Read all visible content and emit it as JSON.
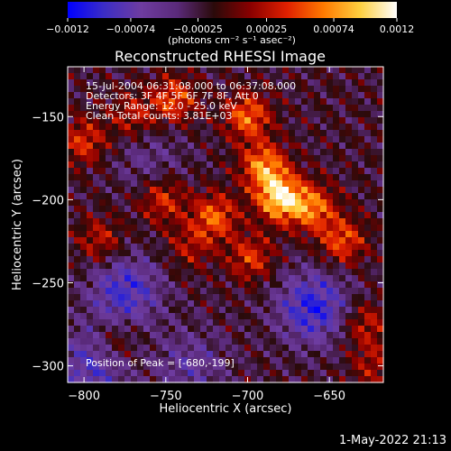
{
  "chart_data": {
    "type": "heatmap",
    "title": "Reconstructed RHESSI Image",
    "xlabel": "Heliocentric X (arcsec)",
    "ylabel": "Heliocentric Y (arcsec)",
    "xlim": [
      -810,
      -617
    ],
    "ylim": [
      -310,
      -120
    ],
    "x_ticks": [
      -800,
      -750,
      -700,
      -650
    ],
    "y_ticks": [
      -150,
      -200,
      -250,
      -300
    ],
    "x_tick_labels": [
      "−800",
      "−750",
      "−700",
      "−650"
    ],
    "y_tick_labels": [
      "−150",
      "−200",
      "−250",
      "−300"
    ],
    "colorbar": {
      "min": -0.0012,
      "max": 0.0012,
      "ticks": [
        -0.0012,
        -0.00074,
        -0.00025,
        0.00025,
        0.00074,
        0.0012
      ],
      "tick_labels": [
        "−0.0012",
        "−0.00074",
        "−0.00025",
        "0.00025",
        "0.00074",
        "0.0012"
      ],
      "unit_label": "(photons cm⁻² s⁻¹ asec⁻²)",
      "stops": [
        "#0000ff",
        "#3c2dc6",
        "#6e3ca0",
        "#5a2a7a",
        "#2a0a0a",
        "#8a0000",
        "#e02000",
        "#ff7a00",
        "#ffd040",
        "#ffffff"
      ]
    },
    "annotations": [
      "15-Jul-2004 06:31:08.000 to 06:37:08.000",
      "Detectors: 3F 4F 5F 6F 7F 8F, Att 0",
      "Energy Range: 12.0 - 25.0 keV",
      "Clean     Total counts: 3.81E+03"
    ],
    "peak_label": "Position of Peak = [-680,-199]",
    "peak": {
      "x": -680,
      "y": -199
    },
    "hotspots": [
      {
        "x": -745,
        "y": -140,
        "amp": 0.0007
      },
      {
        "x": -700,
        "y": -150,
        "amp": 0.0008
      },
      {
        "x": -690,
        "y": -180,
        "amp": 0.0009
      },
      {
        "x": -680,
        "y": -199,
        "amp": 0.0012
      },
      {
        "x": -660,
        "y": -205,
        "amp": 0.0008
      },
      {
        "x": -720,
        "y": -210,
        "amp": 0.00075
      },
      {
        "x": -752,
        "y": -200,
        "amp": 0.0006
      },
      {
        "x": -735,
        "y": -228,
        "amp": 0.0004
      },
      {
        "x": -698,
        "y": -235,
        "amp": 0.0006
      },
      {
        "x": -642,
        "y": -225,
        "amp": 0.0007
      },
      {
        "x": -628,
        "y": -275,
        "amp": 0.0005
      },
      {
        "x": -800,
        "y": -165,
        "amp": 0.0006
      },
      {
        "x": -790,
        "y": -225,
        "amp": 0.0005
      },
      {
        "x": -780,
        "y": -285,
        "amp": 0.0004
      },
      {
        "x": -770,
        "y": -150,
        "amp": 0.0005
      },
      {
        "x": -623,
        "y": -300,
        "amp": 0.0004
      }
    ],
    "coldspots": [
      {
        "x": -775,
        "y": -255,
        "amp": -0.0007
      },
      {
        "x": -660,
        "y": -265,
        "amp": -0.0008
      },
      {
        "x": -795,
        "y": -300,
        "amp": -0.0006
      },
      {
        "x": -760,
        "y": -175,
        "amp": -0.0003
      },
      {
        "x": -735,
        "y": -300,
        "amp": -0.0004
      }
    ]
  },
  "footer": {
    "date": "1-May-2022 21:13"
  }
}
